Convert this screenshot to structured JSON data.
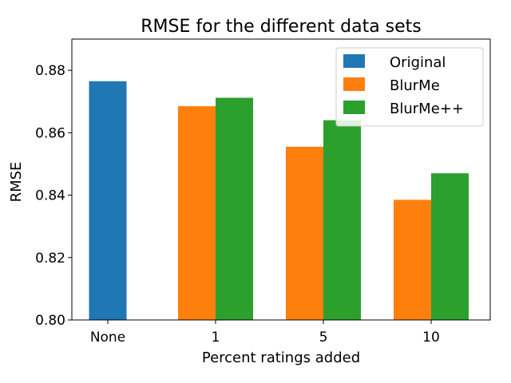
{
  "chart_data": {
    "type": "bar",
    "title": "RMSE for the different data sets",
    "xlabel": "Percent ratings added",
    "ylabel": "RMSE",
    "categories": [
      "None",
      "1",
      "5",
      "10"
    ],
    "ylim": [
      0.8,
      0.89
    ],
    "yticks": [
      "0.80",
      "0.82",
      "0.84",
      "0.86",
      "0.88"
    ],
    "legend_position": "top-right",
    "grid": false,
    "series": [
      {
        "name": "Original",
        "color": "#1f77b4",
        "values": [
          0.8765,
          null,
          null,
          null
        ]
      },
      {
        "name": "BlurMe",
        "color": "#ff7f0e",
        "values": [
          null,
          0.8685,
          0.8555,
          0.8385
        ]
      },
      {
        "name": "BlurMe++",
        "color": "#2ca02c",
        "values": [
          null,
          0.8712,
          0.864,
          0.847
        ]
      }
    ]
  }
}
